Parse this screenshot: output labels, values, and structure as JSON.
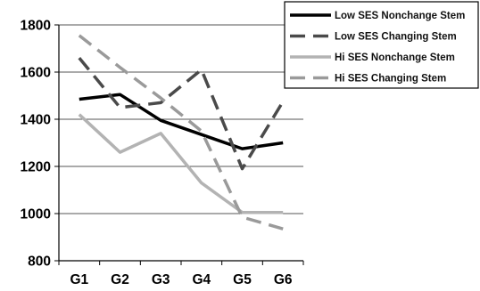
{
  "chart_data": {
    "type": "line",
    "categories": [
      "G1",
      "G2",
      "G3",
      "G4",
      "G5",
      "G6"
    ],
    "ylim": [
      800,
      1800
    ],
    "yticks": [
      800,
      1000,
      1200,
      1400,
      1600,
      1800
    ],
    "grid": true,
    "legend_position": "top-right",
    "title": "",
    "xlabel": "",
    "ylabel": "",
    "series": [
      {
        "name": "Low SES Nonchange Stem",
        "values": [
          1485,
          1505,
          1395,
          1335,
          1275,
          1300
        ],
        "color": "#000000",
        "dash": "solid"
      },
      {
        "name": "Low SES Changing Stem",
        "values": [
          1660,
          1450,
          1470,
          1610,
          1190,
          1475
        ],
        "color": "#4a4a4a",
        "dash": "dashed"
      },
      {
        "name": "Hi SES Nonchange Stem",
        "values": [
          1420,
          1260,
          1340,
          1130,
          1005,
          1005
        ],
        "color": "#b3b3b3",
        "dash": "solid"
      },
      {
        "name": "Hi SES Changing Stem",
        "values": [
          1755,
          1620,
          1490,
          1350,
          985,
          935
        ],
        "color": "#9a9a9a",
        "dash": "dashed"
      }
    ]
  }
}
